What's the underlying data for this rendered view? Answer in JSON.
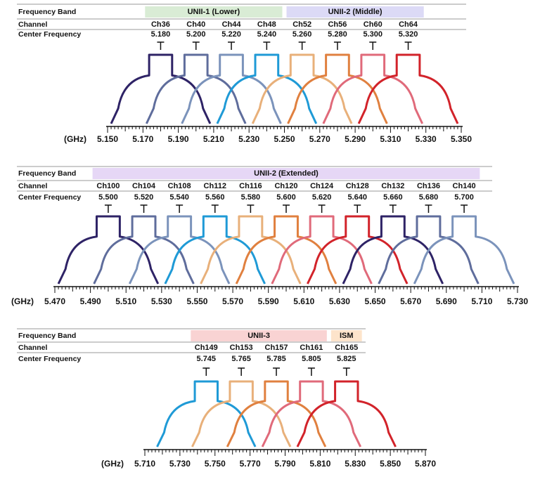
{
  "panels": [
    {
      "band_header": "Frequency Band",
      "channel_header": "Channel",
      "freq_header": "Center Frequency",
      "bands": [
        {
          "label": "UNII-1 (Lower)",
          "color": "#d9ecd5",
          "channels": [
            {
              "name": "Ch36",
              "freq": "5.180",
              "color": "#2e2366"
            },
            {
              "name": "Ch40",
              "freq": "5.200",
              "color": "#5f6d9c"
            },
            {
              "name": "Ch44",
              "freq": "5.220",
              "color": "#7b93bb"
            },
            {
              "name": "Ch48",
              "freq": "5.240",
              "color": "#1f9ad6"
            }
          ]
        },
        {
          "label": "UNII-2 (Middle)",
          "color": "#dcdaf6",
          "channels": [
            {
              "name": "Ch52",
              "freq": "5.260",
              "color": "#e8b07a"
            },
            {
              "name": "Ch56",
              "freq": "5.280",
              "color": "#e0803f"
            },
            {
              "name": "Ch60",
              "freq": "5.300",
              "color": "#e06a7a"
            },
            {
              "name": "Ch64",
              "freq": "5.320",
              "color": "#d2232a"
            }
          ]
        }
      ],
      "unit": "(GHz)",
      "axis": [
        "5.150",
        "5.170",
        "5.190",
        "5.210",
        "5.230",
        "5.250",
        "5.270",
        "5.290",
        "5.310",
        "5.330",
        "5.350"
      ]
    },
    {
      "band_header": "Frequency Band",
      "channel_header": "Channel",
      "freq_header": "Center Frequency",
      "bands": [
        {
          "label": "UNII-2 (Extended)",
          "color": "#e6d7f6",
          "channels": [
            {
              "name": "Ch100",
              "freq": "5.500",
              "color": "#2e2366"
            },
            {
              "name": "Ch104",
              "freq": "5.520",
              "color": "#5f6d9c"
            },
            {
              "name": "Ch108",
              "freq": "5.540",
              "color": "#7b93bb"
            },
            {
              "name": "Ch112",
              "freq": "5.560",
              "color": "#1f9ad6"
            },
            {
              "name": "Ch116",
              "freq": "5.580",
              "color": "#e8b07a"
            },
            {
              "name": "Ch120",
              "freq": "5.600",
              "color": "#e0803f"
            },
            {
              "name": "Ch124",
              "freq": "5.620",
              "color": "#e06a7a"
            },
            {
              "name": "Ch128",
              "freq": "5.640",
              "color": "#d2232a"
            },
            {
              "name": "Ch132",
              "freq": "5.660",
              "color": "#2e2366"
            },
            {
              "name": "Ch136",
              "freq": "5.680",
              "color": "#5f6d9c"
            },
            {
              "name": "Ch140",
              "freq": "5.700",
              "color": "#7b93bb"
            }
          ]
        }
      ],
      "unit": "(GHz)",
      "axis": [
        "5.470",
        "5.490",
        "5.510",
        "5.530",
        "5.550",
        "5.570",
        "5.590",
        "5.610",
        "5.630",
        "5.650",
        "5.670",
        "5.690",
        "5.710",
        "5.730"
      ]
    },
    {
      "band_header": "Frequency Band",
      "channel_header": "Channel",
      "freq_header": "Center Frequency",
      "bands": [
        {
          "label": "UNII-3",
          "color": "#f9d3d3",
          "channels": [
            {
              "name": "Ch149",
              "freq": "5.745",
              "color": "#1f9ad6"
            },
            {
              "name": "Ch153",
              "freq": "5.765",
              "color": "#e8b07a"
            },
            {
              "name": "Ch157",
              "freq": "5.785",
              "color": "#e0803f"
            },
            {
              "name": "Ch161",
              "freq": "5.805",
              "color": "#e06a7a"
            }
          ]
        },
        {
          "label": "ISM",
          "color": "#fde4cb",
          "channels": [
            {
              "name": "Ch165",
              "freq": "5.825",
              "color": "#d2232a"
            }
          ]
        }
      ],
      "unit": "(GHz)",
      "axis": [
        "5.710",
        "5.730",
        "5.750",
        "5.770",
        "5.790",
        "5.810",
        "5.830",
        "5.850",
        "5.870"
      ]
    }
  ]
}
